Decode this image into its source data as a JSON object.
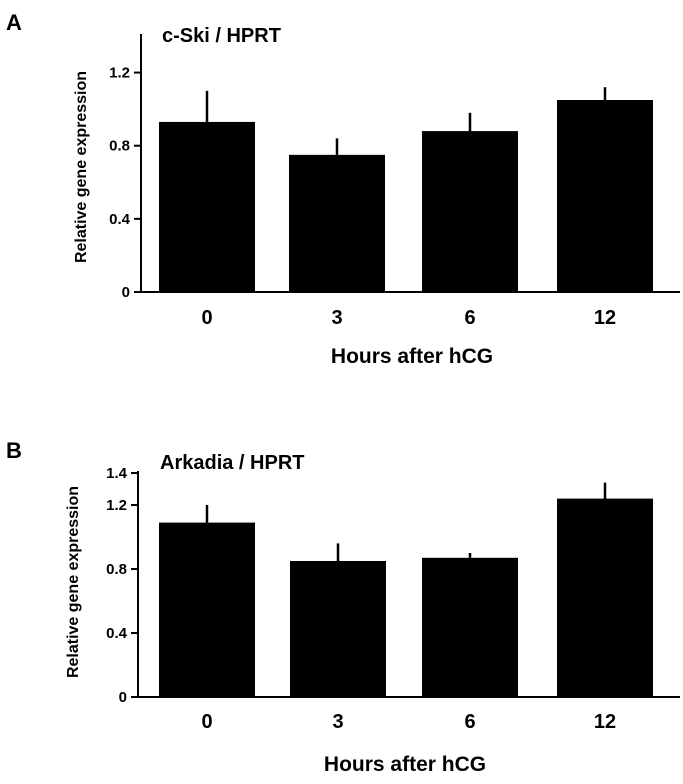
{
  "chart_data": [
    {
      "type": "bar",
      "panel": "A",
      "title": "c-Ski / HPRT",
      "xlabel": "Hours after hCG",
      "ylabel": "Relative gene expression",
      "categories": [
        "0",
        "3",
        "6",
        "12"
      ],
      "values": [
        0.93,
        0.75,
        0.88,
        1.05
      ],
      "error": [
        0.17,
        0.09,
        0.1,
        0.07
      ],
      "ylim": [
        0,
        1.4
      ],
      "yticks": [
        "0",
        "0.4",
        "0.8",
        "1.2"
      ],
      "yticks_values": [
        0,
        0.4,
        0.8,
        1.2
      ],
      "bar_color": "#000000",
      "grid": false
    },
    {
      "type": "bar",
      "panel": "B",
      "title": "Arkadia / HPRT",
      "xlabel": "Hours after hCG",
      "ylabel": "Relative gene expression",
      "categories": [
        "0",
        "3",
        "6",
        "12"
      ],
      "values": [
        1.09,
        0.85,
        0.87,
        1.24
      ],
      "error": [
        0.11,
        0.11,
        0.03,
        0.1
      ],
      "ylim": [
        0,
        1.4
      ],
      "yticks": [
        "0",
        "0.4",
        "0.8",
        "1.2",
        "1.4"
      ],
      "yticks_values": [
        0,
        0.4,
        0.8,
        1.2,
        1.4
      ],
      "bar_color": "#000000",
      "grid": false
    }
  ]
}
